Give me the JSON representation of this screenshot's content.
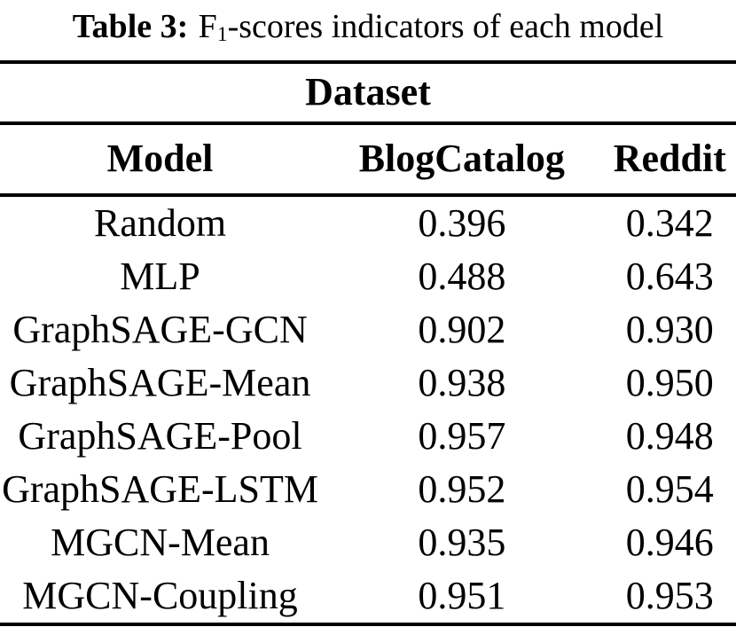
{
  "caption": {
    "label": "Table 3:",
    "metric": "F",
    "metric_sub": "1",
    "rest": "-scores indicators of each model"
  },
  "table": {
    "group_header": "Dataset",
    "columns": [
      "Model",
      "BlogCatalog",
      "Reddit"
    ],
    "rows": [
      {
        "model": "Random",
        "blogcatalog": "0.396",
        "reddit": "0.342"
      },
      {
        "model": "MLP",
        "blogcatalog": "0.488",
        "reddit": "0.643"
      },
      {
        "model": "GraphSAGE-GCN",
        "blogcatalog": "0.902",
        "reddit": "0.930"
      },
      {
        "model": "GraphSAGE-Mean",
        "blogcatalog": "0.938",
        "reddit": "0.950"
      },
      {
        "model": "GraphSAGE-Pool",
        "blogcatalog": "0.957",
        "reddit": "0.948"
      },
      {
        "model": "GraphSAGE-LSTM",
        "blogcatalog": "0.952",
        "reddit": "0.954"
      },
      {
        "model": "MGCN-Mean",
        "blogcatalog": "0.935",
        "reddit": "0.946"
      },
      {
        "model": "MGCN-Coupling",
        "blogcatalog": "0.951",
        "reddit": "0.953"
      }
    ]
  },
  "colors": {
    "text": "#000000",
    "background": "#ffffff",
    "rule": "#000000"
  }
}
